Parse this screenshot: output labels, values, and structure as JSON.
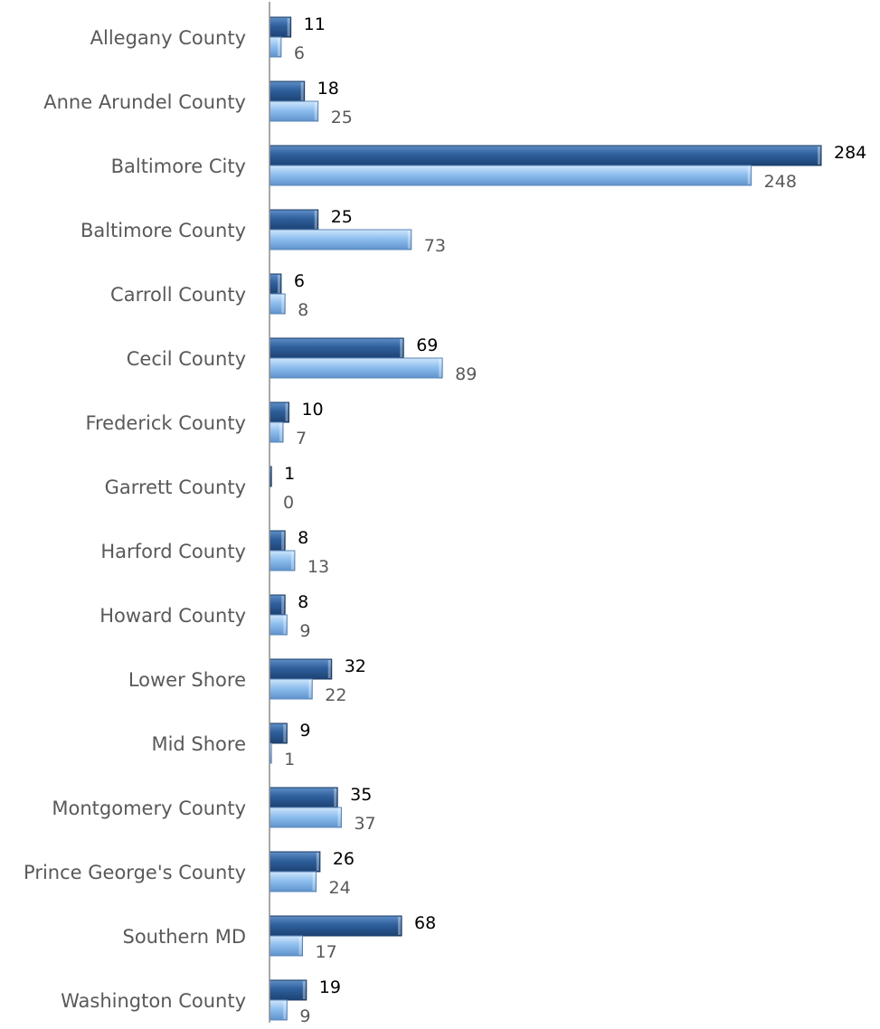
{
  "chart_data": {
    "type": "bar",
    "orientation": "horizontal",
    "categories": [
      "Allegany County",
      "Anne Arundel County",
      "Baltimore City",
      "Baltimore County",
      "Carroll County",
      "Cecil County",
      "Frederick County",
      "Garrett County",
      "Harford County",
      "Howard County",
      "Lower Shore",
      "Mid Shore",
      "Montgomery County",
      "Prince George's County",
      "Southern MD",
      "Washington County"
    ],
    "series": [
      {
        "values": [
          11,
          18,
          284,
          25,
          6,
          69,
          10,
          1,
          8,
          8,
          32,
          9,
          35,
          26,
          68,
          19
        ],
        "color": "#2e5f9b",
        "label_color": "#000000"
      },
      {
        "values": [
          6,
          25,
          248,
          73,
          8,
          89,
          7,
          0,
          13,
          9,
          22,
          1,
          37,
          24,
          17,
          9
        ],
        "color": "#8fbfef",
        "label_color": "#595959"
      }
    ],
    "xlim": [
      0,
      284
    ],
    "grid": false,
    "legend": "none",
    "title": "",
    "xlabel": "",
    "ylabel": ""
  }
}
